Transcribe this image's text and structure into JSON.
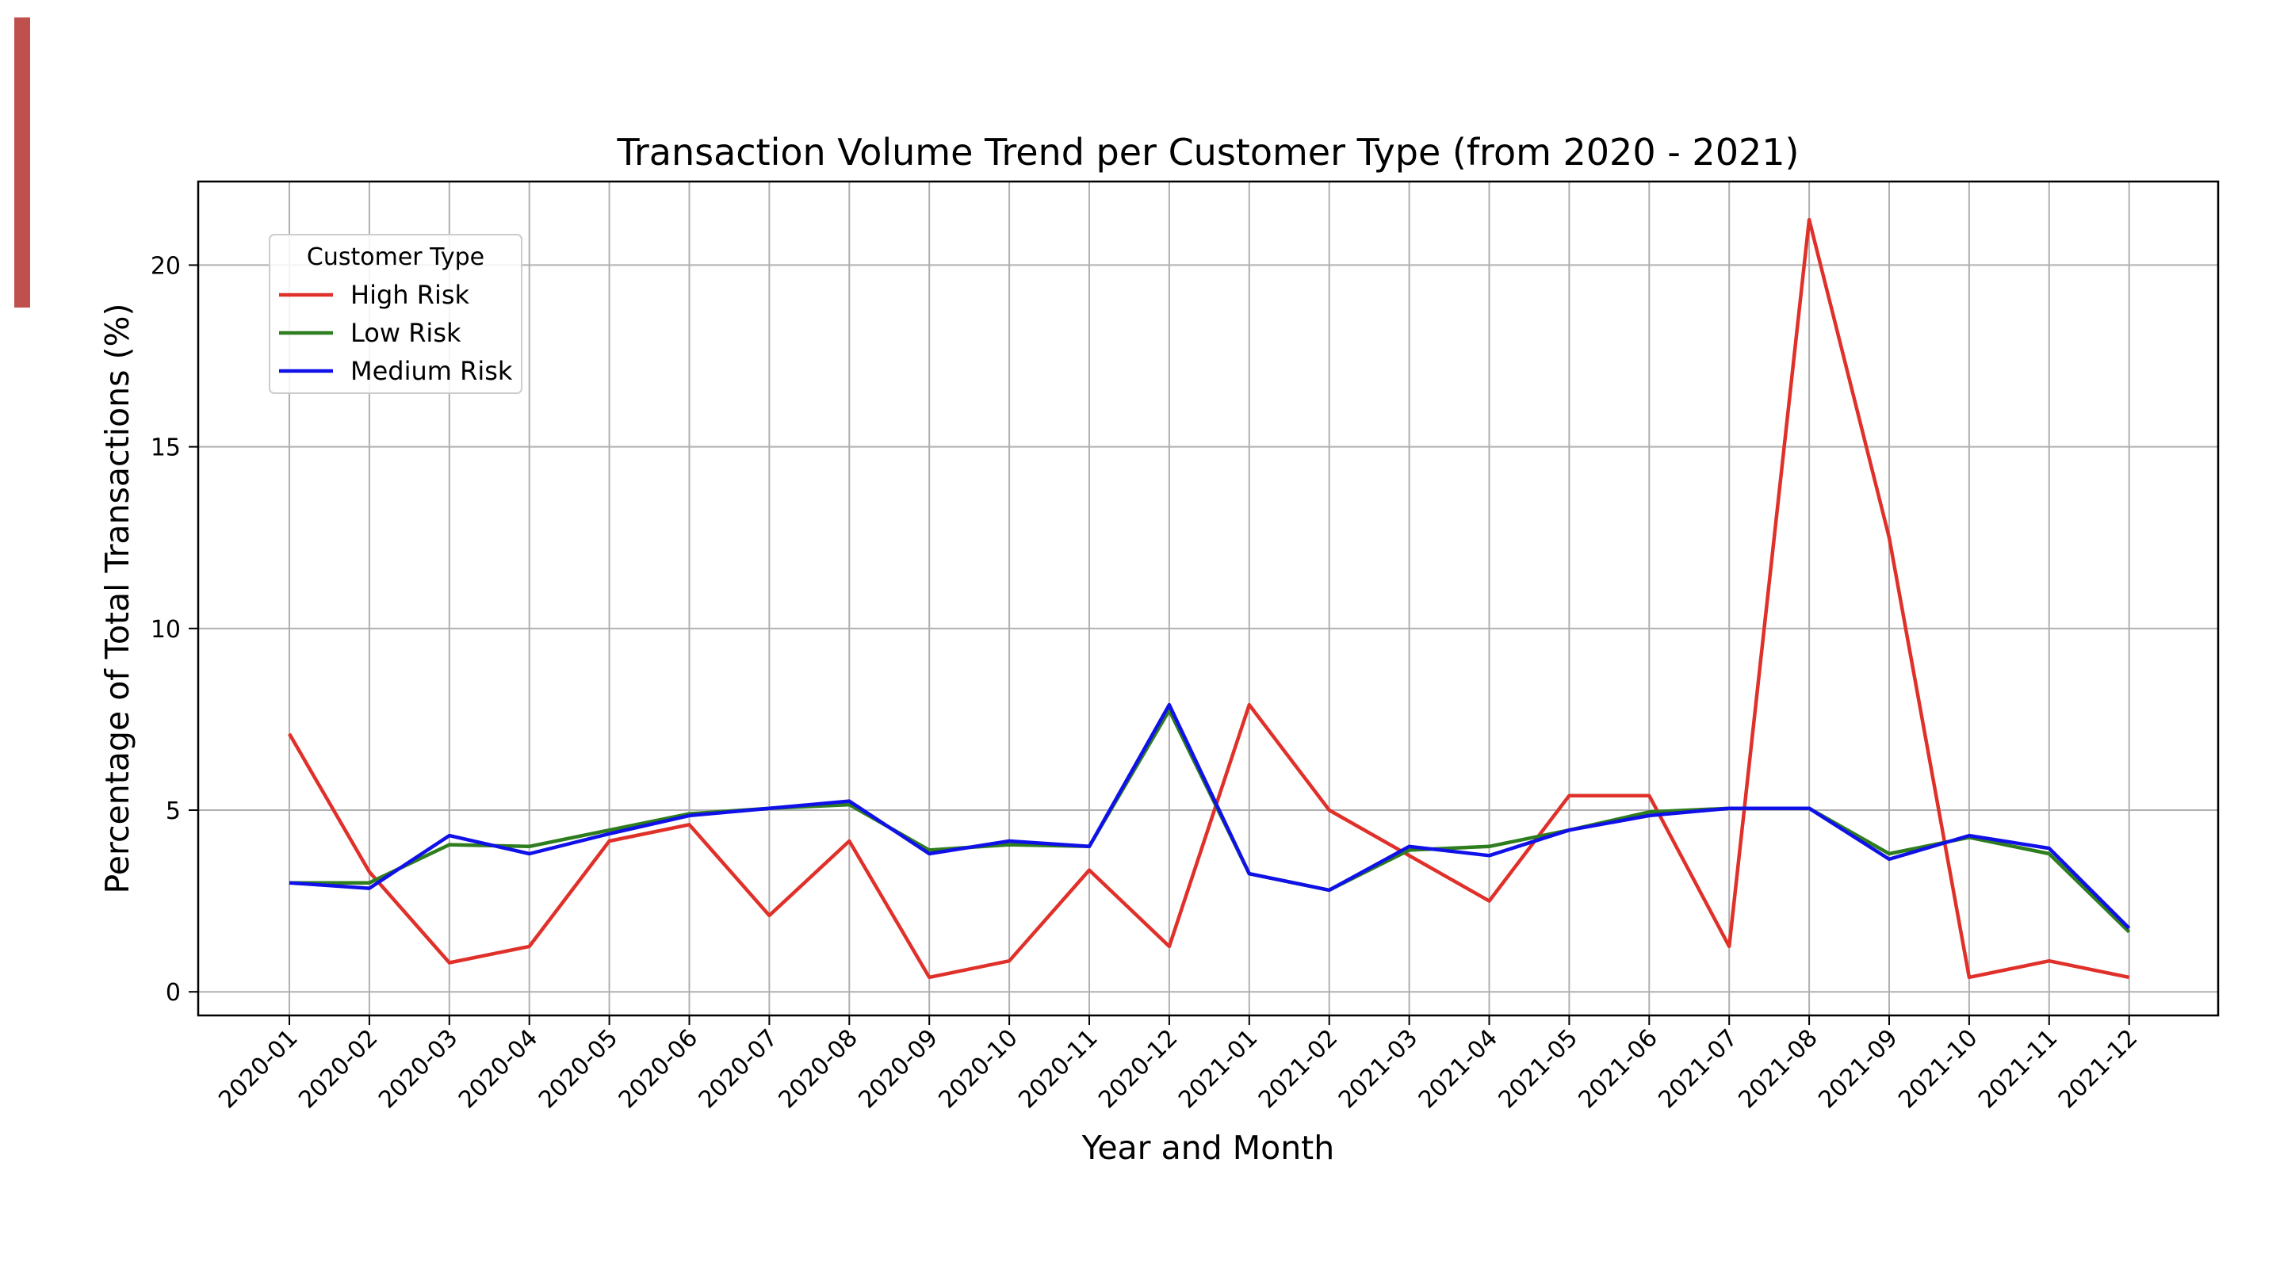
{
  "colors": {
    "accent": "#c0504d",
    "grid": "#b0b0b0",
    "high_risk": "#e0302a",
    "low_risk": "#2e7d1e",
    "medium_risk": "#1010e8"
  },
  "chart_data": {
    "type": "line",
    "title": "Transaction Volume Trend per Customer Type (from 2020 - 2021)",
    "xlabel": "Year and Month",
    "ylabel": "Percentage of Total Transactions (%)",
    "categories": [
      "2020-01",
      "2020-02",
      "2020-03",
      "2020-04",
      "2020-05",
      "2020-06",
      "2020-07",
      "2020-08",
      "2020-09",
      "2020-10",
      "2020-11",
      "2020-12",
      "2021-01",
      "2021-02",
      "2021-03",
      "2021-04",
      "2021-05",
      "2021-06",
      "2021-07",
      "2021-08",
      "2021-09",
      "2021-10",
      "2021-11",
      "2021-12"
    ],
    "ylim": [
      -0.65,
      22.3
    ],
    "yticks": [
      0,
      5,
      10,
      15,
      20
    ],
    "grid": true,
    "legend": {
      "title": "Customer Type",
      "placement": "upper-left"
    },
    "series": [
      {
        "name": "High Risk",
        "color_key": "high_risk",
        "values": [
          7.1,
          3.3,
          0.8,
          1.25,
          4.15,
          4.6,
          2.1,
          4.15,
          0.4,
          0.85,
          3.35,
          1.25,
          7.9,
          5.0,
          3.75,
          2.5,
          5.4,
          5.4,
          1.25,
          21.25,
          12.5,
          0.4,
          0.85,
          0.4
        ]
      },
      {
        "name": "Low Risk",
        "color_key": "low_risk",
        "values": [
          3.0,
          3.0,
          4.05,
          4.0,
          4.45,
          4.9,
          5.05,
          5.15,
          3.9,
          4.05,
          4.0,
          7.75,
          3.25,
          2.8,
          3.9,
          4.0,
          4.45,
          4.95,
          5.05,
          5.05,
          3.8,
          4.25,
          3.8,
          1.65
        ]
      },
      {
        "name": "Medium Risk",
        "color_key": "medium_risk",
        "values": [
          3.0,
          2.85,
          4.3,
          3.8,
          4.35,
          4.85,
          5.05,
          5.25,
          3.8,
          4.15,
          4.0,
          7.9,
          3.25,
          2.8,
          4.0,
          3.75,
          4.45,
          4.85,
          5.05,
          5.05,
          3.65,
          4.3,
          3.95,
          1.75
        ]
      }
    ]
  }
}
